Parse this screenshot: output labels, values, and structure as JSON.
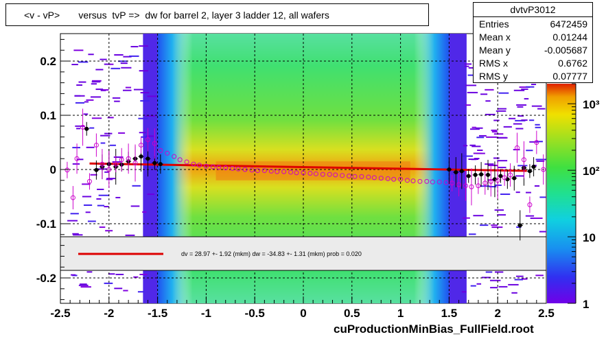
{
  "title": "<v - vP>       versus  tvP =>  dw for barrel 2, layer 3 ladder 12, all wafers",
  "stats": {
    "name": "dvtvP3012",
    "rows": [
      {
        "label": "Entries",
        "value": "6472459"
      },
      {
        "label": "Mean x",
        "value": "0.01244"
      },
      {
        "label": "Mean y",
        "value": "-0.005687"
      },
      {
        "label": "RMS x",
        "value": "0.6762"
      },
      {
        "label": "RMS y",
        "value": "0.07777"
      }
    ]
  },
  "legend_text": "dv =   28.97 +-   1.92 (mkm) dw =  -34.83 +-   1.31 (mkm) prob = 0.020",
  "footer": "cuProductionMinBias_FullField.root",
  "colors": {
    "fit_line": "#dd0000",
    "profile_black": "#000000",
    "profile_magenta": "#cc00cc",
    "band_blue": "#6a2cf0",
    "band_green": "#40e040",
    "band_core": "#f2a010"
  },
  "chart_data": {
    "type": "heatmap",
    "xlim": [
      -2.5,
      2.5
    ],
    "ylim": [
      -0.25,
      0.25
    ],
    "x_ticks": [
      {
        "v": -2.5,
        "label": "-2.5"
      },
      {
        "v": -2,
        "label": "-2"
      },
      {
        "v": -1.5,
        "label": "-1.5"
      },
      {
        "v": -1,
        "label": "-1"
      },
      {
        "v": -0.5,
        "label": "-0.5"
      },
      {
        "v": 0,
        "label": "0"
      },
      {
        "v": 0.5,
        "label": "0.5"
      },
      {
        "v": 1,
        "label": "1"
      },
      {
        "v": 1.5,
        "label": "1.5"
      },
      {
        "v": 2,
        "label": "2"
      },
      {
        "v": 2.5,
        "label": "2.5"
      }
    ],
    "y_ticks": [
      {
        "v": 0.2,
        "label": "0.2"
      },
      {
        "v": 0.1,
        "label": "0.1"
      },
      {
        "v": 0,
        "label": "0"
      },
      {
        "v": -0.1,
        "label": "-0.1"
      },
      {
        "v": -0.2,
        "label": "-0.2"
      }
    ],
    "grid": true,
    "colorbar": {
      "scale": "log",
      "range": [
        1,
        2000
      ],
      "ticks": [
        {
          "v": 1,
          "label": "1"
        },
        {
          "v": 10,
          "label": "10"
        },
        {
          "v": 100,
          "label": "10²"
        },
        {
          "v": 1000,
          "label": "10³"
        }
      ]
    },
    "fit_line": {
      "x": [
        -2.2,
        2.3
      ],
      "y": [
        0.011,
        -0.0025
      ]
    },
    "profile_black": {
      "x": [
        -2.23,
        -2.13,
        -2.07,
        -2.0,
        -1.93,
        -1.87,
        -1.8,
        -1.73,
        -1.67,
        -1.6,
        -1.53,
        -1.47,
        1.5,
        1.57,
        1.63,
        1.7,
        1.77,
        1.83,
        1.9,
        1.97,
        2.03,
        2.1,
        2.17,
        2.23,
        2.27,
        2.33,
        2.37
      ],
      "y": [
        0.075,
        -0.001,
        0.005,
        0.01,
        0.005,
        0.009,
        0.015,
        0.02,
        0.024,
        0.02,
        0.012,
        0.01,
        0.0,
        -0.005,
        -0.003,
        -0.012,
        -0.01,
        -0.009,
        -0.01,
        -0.018,
        -0.012,
        -0.018,
        -0.016,
        -0.103,
        0.003,
        -0.003,
        0.005
      ]
    },
    "profile_magenta": {
      "x": [
        -2.43,
        -2.37,
        -2.33,
        -2.27,
        -2.2,
        -2.13,
        -2.07,
        -2.0,
        -1.93,
        -1.87,
        -1.8,
        -1.73,
        -1.67,
        -1.6,
        -1.53,
        -1.47,
        -1.4,
        -1.33,
        -1.27,
        -1.2,
        -1.13,
        -1.07,
        -1.0,
        -0.93,
        -0.87,
        -0.8,
        -0.73,
        -0.67,
        -0.6,
        -0.53,
        -0.47,
        -0.4,
        -0.33,
        -0.27,
        -0.2,
        -0.13,
        -0.07,
        0.0,
        0.07,
        0.13,
        0.2,
        0.27,
        0.33,
        0.4,
        0.47,
        0.53,
        0.6,
        0.67,
        0.73,
        0.8,
        0.87,
        0.93,
        1.0,
        1.07,
        1.13,
        1.2,
        1.27,
        1.33,
        1.4,
        1.47,
        1.53,
        1.6,
        1.67,
        1.73,
        1.8,
        1.87,
        1.93,
        2.0,
        2.07,
        2.13,
        2.2,
        2.27,
        2.33,
        2.4,
        2.47
      ],
      "y": [
        -0.001,
        -0.052,
        0.02,
        0.078,
        -0.022,
        0.045,
        0.01,
        0.0,
        0.01,
        0.018,
        0.02,
        0.012,
        0.045,
        0.055,
        0.048,
        0.035,
        0.03,
        0.024,
        0.018,
        0.014,
        0.01,
        0.008,
        0.006,
        0.005,
        0.004,
        0.003,
        0.002,
        0.001,
        0.0,
        -0.001,
        -0.002,
        -0.002,
        -0.003,
        -0.004,
        -0.004,
        -0.005,
        -0.006,
        -0.006,
        -0.007,
        -0.008,
        -0.009,
        -0.009,
        -0.01,
        -0.011,
        -0.012,
        -0.013,
        -0.013,
        -0.014,
        -0.015,
        -0.016,
        -0.017,
        -0.018,
        -0.018,
        -0.02,
        -0.021,
        -0.022,
        -0.022,
        -0.023,
        -0.023,
        -0.024,
        -0.025,
        -0.028,
        -0.03,
        -0.032,
        -0.03,
        -0.025,
        -0.022,
        -0.02,
        -0.015,
        -0.01,
        0.04,
        0.018,
        -0.065,
        0.05,
        0.0
      ]
    }
  }
}
